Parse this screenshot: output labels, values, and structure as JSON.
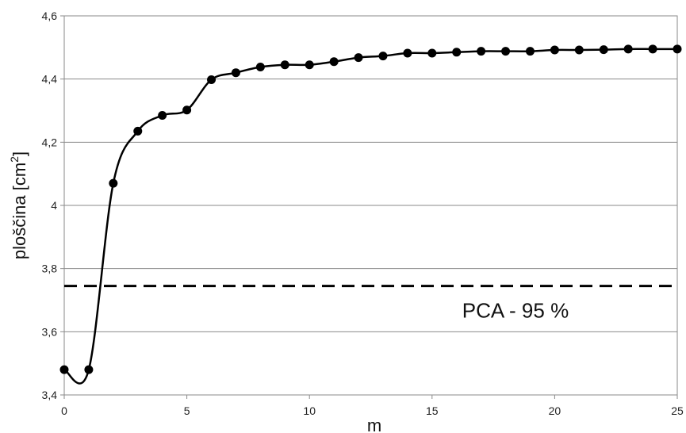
{
  "chart_data": {
    "type": "line",
    "xlabel": "m",
    "ylabel": "ploščina [cm",
    "ylabel_superscript": "2",
    "ylabel_suffix": "]",
    "xlim": [
      0,
      25
    ],
    "ylim": [
      3.4,
      4.6
    ],
    "x_ticks": [
      0,
      5,
      10,
      15,
      20,
      25
    ],
    "y_ticks": [
      3.4,
      3.6,
      3.8,
      4.0,
      4.2,
      4.4,
      4.6
    ],
    "x_tick_labels": [
      "0",
      "5",
      "10",
      "15",
      "20",
      "25"
    ],
    "y_tick_labels": [
      "3,4",
      "3,6",
      "3,8",
      "4",
      "4,2",
      "4,4",
      "4,6"
    ],
    "grid": "horizontal",
    "series": [
      {
        "x": [
          0,
          1,
          2,
          3,
          4,
          5,
          6,
          7,
          8,
          9,
          10,
          11,
          12,
          13,
          14,
          15,
          16,
          17,
          18,
          19,
          20,
          21,
          22,
          23,
          24,
          25
        ],
        "y": [
          3.48,
          3.48,
          4.07,
          4.235,
          4.285,
          4.302,
          4.398,
          4.42,
          4.438,
          4.445,
          4.445,
          4.455,
          4.468,
          4.473,
          4.482,
          4.482,
          4.485,
          4.488,
          4.488,
          4.488,
          4.492,
          4.492,
          4.493,
          4.495,
          4.495,
          4.495
        ],
        "color": "#000000",
        "marker": "circle"
      }
    ],
    "reference_line": {
      "y": 3.745,
      "style": "dashed",
      "label": "PCA - 95 %"
    }
  }
}
